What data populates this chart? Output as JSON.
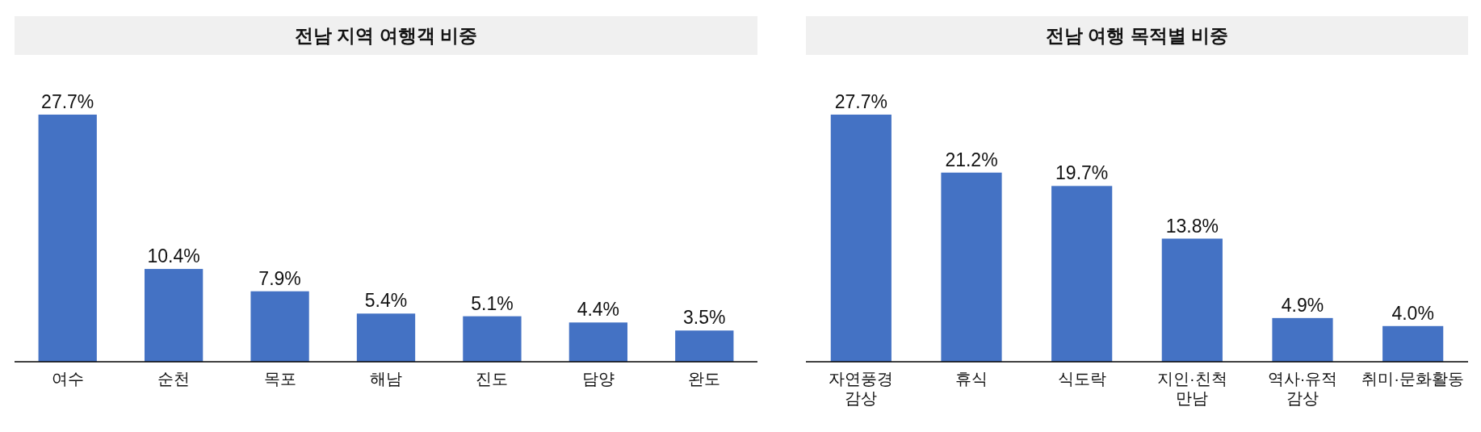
{
  "chart_data": [
    {
      "type": "bar",
      "title": "전남 지역 여행객 비중",
      "categories": [
        "여수",
        "순천",
        "목포",
        "해남",
        "진도",
        "담양",
        "완도"
      ],
      "values": [
        27.7,
        10.4,
        7.9,
        5.4,
        5.1,
        4.4,
        3.5
      ],
      "color": "#4472c4",
      "value_labels": [
        "27.7%",
        "10.4%",
        "7.9%",
        "5.4%",
        "5.1%",
        "4.4%",
        "3.5%"
      ]
    },
    {
      "type": "bar",
      "title": "전남 여행 목적별 비중",
      "categories": [
        "자연풍경 감상",
        "휴식",
        "식도락",
        "지인·친척 만남",
        "역사·유적 감상",
        "취미·문화활동"
      ],
      "values": [
        27.7,
        21.2,
        19.7,
        13.8,
        4.9,
        4.0
      ],
      "color": "#4472c4",
      "value_labels": [
        "27.7%",
        "21.2%",
        "19.7%",
        "13.8%",
        "4.9%",
        "4.0%"
      ]
    }
  ]
}
